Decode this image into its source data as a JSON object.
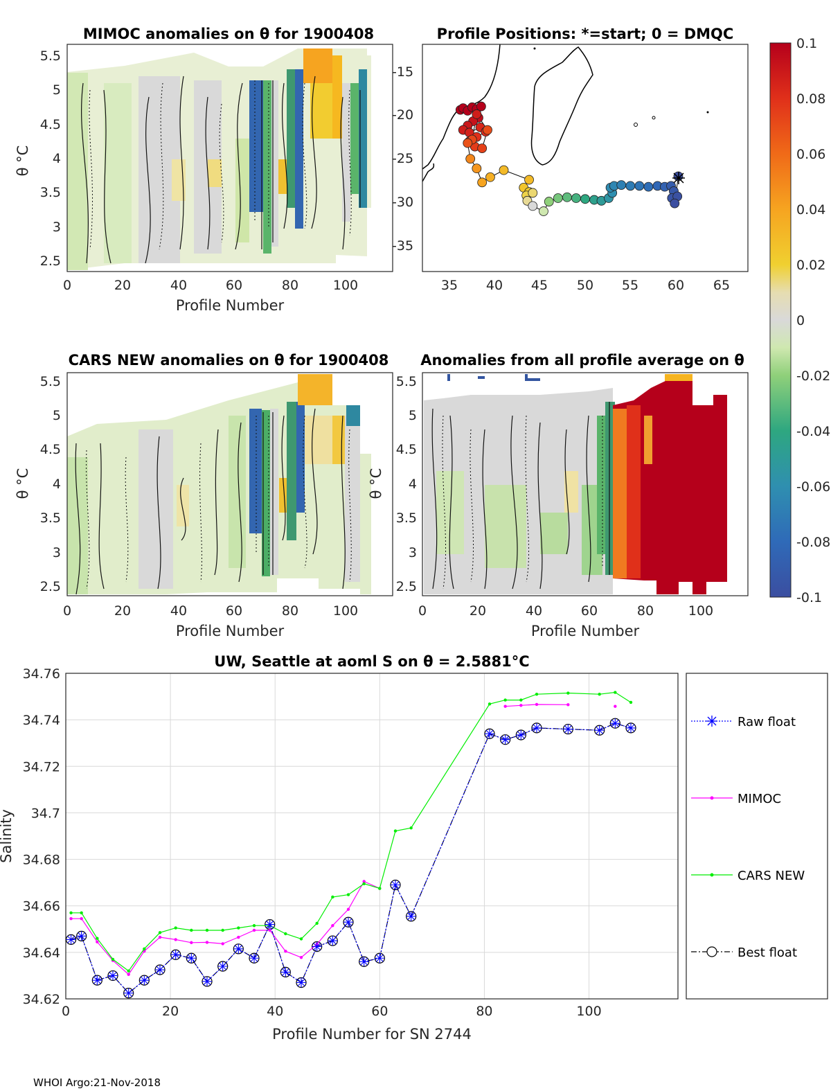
{
  "figure": {
    "footer": "WHOI Argo:21-Nov-2018"
  },
  "panels": {
    "mimoc": {
      "title": "MIMOC anomalies on θ  for 1900408",
      "xlabel": "Profile Number",
      "ylabel": "θ °C",
      "xticks": [
        "0",
        "20",
        "40",
        "60",
        "80",
        "100"
      ],
      "yticks": [
        "2.5",
        "3",
        "3.5",
        "4",
        "4.5",
        "5",
        "5.5"
      ]
    },
    "positions": {
      "title": "Profile Positions: *=start; 0 = DMQC",
      "xticks": [
        "35",
        "40",
        "45",
        "50",
        "55",
        "60",
        "65"
      ],
      "yticks": [
        "-15",
        "-20",
        "-25",
        "-30",
        "-35"
      ]
    },
    "cars": {
      "title": "CARS NEW anomalies on θ for 1900408",
      "xlabel": "Profile Number",
      "ylabel": "θ °C",
      "xticks": [
        "0",
        "20",
        "40",
        "60",
        "80",
        "100"
      ],
      "yticks": [
        "2.5",
        "3",
        "3.5",
        "4",
        "4.5",
        "5",
        "5.5"
      ]
    },
    "allavg": {
      "title": "Anomalies from all profile average on θ",
      "xlabel": "Profile Number",
      "ylabel": "θ °C",
      "xticks": [
        "0",
        "20",
        "40",
        "60",
        "80",
        "100"
      ],
      "yticks": [
        "2.5",
        "3",
        "3.5",
        "4",
        "4.5",
        "5",
        "5.5"
      ]
    },
    "colorbar": {
      "ticks": [
        "0.1",
        "0.08",
        "0.06",
        "0.04",
        "0.02",
        "0",
        "-0.02",
        "-0.04",
        "-0.06",
        "-0.08",
        "-0.1"
      ]
    }
  },
  "chart_data": [
    {
      "type": "line",
      "title": "UW, Seattle at aoml S on θ = 2.5881°C",
      "xlabel": "Profile Number for SN 2744",
      "ylabel": "Salinity",
      "xlim": [
        0,
        117
      ],
      "ylim": [
        34.62,
        34.76
      ],
      "xticks": [
        "0",
        "20",
        "40",
        "60",
        "80",
        "100"
      ],
      "yticks": [
        "34.62",
        "34.64",
        "34.66",
        "34.68",
        "34.7",
        "34.72",
        "34.74",
        "34.76"
      ],
      "legend": [
        "Raw float",
        "MIMOC",
        "CARS NEW",
        "Best float"
      ],
      "series": [
        {
          "name": "Best float",
          "color": "#000000",
          "x": [
            1,
            3,
            6,
            9,
            12,
            15,
            18,
            21,
            24,
            27,
            30,
            33,
            36,
            39,
            42,
            45,
            48,
            51,
            54,
            57,
            60,
            63,
            66,
            81,
            84,
            87,
            90,
            96,
            102,
            105,
            108
          ],
          "y": [
            34.6455,
            34.647,
            34.628,
            34.63,
            34.6225,
            34.628,
            34.6325,
            34.639,
            34.6375,
            34.6275,
            34.634,
            34.6415,
            34.6375,
            34.652,
            34.6315,
            34.627,
            34.6425,
            34.645,
            34.653,
            34.636,
            34.6375,
            34.669,
            34.6555,
            34.734,
            34.7315,
            34.7335,
            34.7365,
            34.736,
            34.7355,
            34.7385,
            34.7365
          ]
        },
        {
          "name": "MIMOC",
          "color": "#ff00ff",
          "x": [
            1,
            3,
            6,
            9,
            12,
            15,
            18,
            21,
            24,
            27,
            30,
            33,
            36,
            39,
            42,
            45,
            48,
            51,
            54,
            57,
            60,
            63,
            66,
            81,
            84,
            87,
            90,
            96,
            102,
            105,
            108
          ],
          "y": [
            34.6545,
            34.6545,
            34.6445,
            34.6365,
            34.6305,
            34.6405,
            34.6465,
            34.6455,
            34.6442,
            34.6443,
            34.6437,
            34.6465,
            34.6495,
            34.6495,
            34.6405,
            34.6378,
            34.6435,
            34.6515,
            34.6585,
            34.6705,
            34.6675,
            null,
            null,
            null,
            34.7458,
            34.7462,
            34.7466,
            34.7465,
            null,
            34.7458,
            null
          ]
        },
        {
          "name": "CARS NEW",
          "color": "#00ee00",
          "x": [
            1,
            3,
            6,
            9,
            12,
            15,
            18,
            21,
            24,
            27,
            30,
            33,
            36,
            39,
            42,
            45,
            48,
            51,
            54,
            57,
            60,
            63,
            66,
            81,
            84,
            87,
            90,
            96,
            102,
            105,
            108
          ],
          "y": [
            34.657,
            34.657,
            34.646,
            34.637,
            34.632,
            34.6415,
            34.6485,
            34.6505,
            34.6495,
            34.6495,
            34.6495,
            34.6505,
            34.6515,
            34.6515,
            34.648,
            34.6458,
            34.6525,
            34.6638,
            34.6648,
            34.6695,
            34.6675,
            34.6922,
            34.6935,
            34.7468,
            34.7485,
            34.7485,
            34.751,
            34.7515,
            34.751,
            34.7518,
            34.7475
          ]
        },
        {
          "name": "Raw float",
          "color": "#0000ff",
          "x": [
            1,
            3,
            6,
            9,
            12,
            15,
            18,
            21,
            24,
            27,
            30,
            33,
            36,
            39,
            42,
            45,
            48,
            51,
            54,
            57,
            60,
            63,
            66,
            81,
            84,
            87,
            90,
            96,
            102,
            105,
            108
          ],
          "y": [
            34.6455,
            34.647,
            34.628,
            34.63,
            34.6225,
            34.628,
            34.6325,
            34.639,
            34.6375,
            34.6275,
            34.634,
            34.6415,
            34.6375,
            34.652,
            34.6315,
            34.627,
            34.6425,
            34.645,
            34.653,
            34.636,
            34.6375,
            34.669,
            34.6555,
            34.734,
            34.7315,
            34.7335,
            34.7365,
            34.736,
            34.7355,
            34.7385,
            34.7365
          ]
        }
      ]
    },
    {
      "type": "scatter",
      "title": "Profile Positions: *=start; 0 = DMQC",
      "xlim": [
        32,
        68
      ],
      "ylim": [
        -38,
        -12
      ],
      "lon": [
        36.2,
        36.5,
        37.0,
        37.5,
        38.0,
        38.5,
        38.2,
        37.6,
        37.0,
        36.5,
        37.2,
        38.4,
        39.0,
        38.0,
        37.2,
        37.8,
        38.6,
        39.2,
        38.0,
        37.5,
        37.0,
        37.3,
        38.0,
        38.6,
        39.5,
        41.0,
        43.8,
        43.2,
        43.8,
        43.5,
        44.2,
        43.6,
        44.2,
        45.4,
        46.0,
        47.0,
        48.0,
        49.0,
        50.0,
        51.0,
        51.8,
        52.6,
        53.0,
        52.8,
        53.2,
        54.0,
        55.0,
        56.0,
        57.0,
        58.0,
        58.8,
        59.5,
        59.8,
        59.6,
        60.2,
        59.9,
        60.3
      ],
      "lat": [
        -19.5,
        -19.3,
        -19.6,
        -19.2,
        -19.4,
        -19.1,
        -20.4,
        -20.8,
        -21.3,
        -21.8,
        -22.1,
        -21.5,
        -22.0,
        -22.6,
        -23.1,
        -23.7,
        -23.9,
        -21.8,
        -20.0,
        -22.9,
        -23.3,
        -25.1,
        -26.2,
        -27.8,
        -27.2,
        -26.4,
        -27.5,
        -28.4,
        -28.9,
        -29.3,
        -29.0,
        -29.9,
        -30.5,
        -31.1,
        -30.0,
        -29.6,
        -29.5,
        -29.6,
        -29.7,
        -29.8,
        -29.9,
        -29.6,
        -29.0,
        -28.4,
        -28.2,
        -28.1,
        -28.2,
        -28.2,
        -28.3,
        -28.2,
        -28.3,
        -28.2,
        -28.8,
        -29.6,
        -29.4,
        -30.2,
        -27.1
      ],
      "anomaly": [
        0.1,
        0.1,
        0.1,
        0.1,
        0.1,
        0.1,
        0.095,
        0.092,
        0.09,
        0.088,
        0.086,
        0.084,
        0.082,
        0.08,
        0.078,
        0.076,
        0.074,
        0.07,
        0.088,
        0.072,
        0.068,
        0.05,
        0.045,
        0.04,
        0.035,
        0.03,
        0.03,
        0.025,
        0.022,
        0.018,
        0.015,
        0.012,
        0.0,
        -0.01,
        -0.02,
        -0.025,
        -0.03,
        -0.035,
        -0.04,
        -0.045,
        -0.05,
        -0.055,
        -0.06,
        -0.062,
        -0.065,
        -0.068,
        -0.07,
        -0.074,
        -0.078,
        -0.082,
        -0.086,
        -0.09,
        -0.093,
        -0.096,
        -0.098,
        -0.1,
        -0.1
      ]
    }
  ]
}
